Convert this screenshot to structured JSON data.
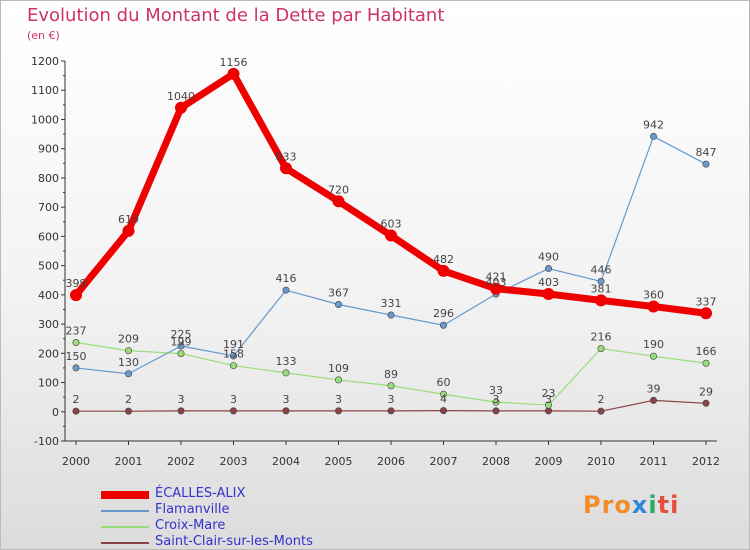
{
  "title": "Evolution du Montant de la Dette par Habitant",
  "unit_label": "(en €)",
  "logo": {
    "text": "Proxiti"
  },
  "chart_data": {
    "type": "line",
    "title": "Evolution du Montant de la Dette par Habitant",
    "xlabel": "",
    "ylabel": "(en €)",
    "x": [
      "2000",
      "2001",
      "2002",
      "2003",
      "2004",
      "2005",
      "2006",
      "2007",
      "2008",
      "2009",
      "2010",
      "2011",
      "2012"
    ],
    "ylim": [
      -100,
      1200
    ],
    "yticks": [
      -100,
      0,
      100,
      200,
      300,
      400,
      500,
      600,
      700,
      800,
      900,
      1000,
      1100,
      1200
    ],
    "grid": false,
    "legend_position": "bottom-left",
    "series": [
      {
        "name": "ÉCALLES-ALIX",
        "color": "#ee0000",
        "values": [
          399,
          619,
          1040,
          1156,
          833,
          720,
          603,
          482,
          421,
          403,
          381,
          360,
          337
        ]
      },
      {
        "name": "Flamanville",
        "color": "#6699cc",
        "values": [
          150,
          130,
          225,
          191,
          416,
          367,
          331,
          296,
          403,
          490,
          446,
          942,
          847
        ]
      },
      {
        "name": "Croix-Mare",
        "color": "#99dd77",
        "values": [
          237,
          209,
          199,
          158,
          133,
          109,
          89,
          60,
          33,
          23,
          216,
          190,
          166
        ]
      },
      {
        "name": "Saint-Clair-sur-les-Monts",
        "color": "#884444",
        "values": [
          2,
          2,
          3,
          3,
          3,
          3,
          3,
          4,
          3,
          3,
          2,
          39,
          29
        ]
      }
    ]
  }
}
